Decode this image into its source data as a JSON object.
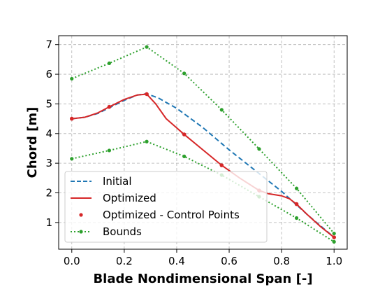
{
  "chart_data": {
    "type": "line",
    "title": "",
    "xlabel": "Blade Nondimensional Span [-]",
    "ylabel": "Chord [m]",
    "xlim": [
      -0.05,
      1.05
    ],
    "ylim": [
      0.1,
      7.3
    ],
    "xticks": [
      0.0,
      0.2,
      0.4,
      0.6,
      0.8,
      1.0
    ],
    "xtick_labels": [
      "0.0",
      "0.2",
      "0.4",
      "0.6",
      "0.8",
      "1.0"
    ],
    "yticks": [
      1,
      2,
      3,
      4,
      5,
      6,
      7
    ],
    "ytick_labels": [
      "1",
      "2",
      "3",
      "4",
      "5",
      "6",
      "7"
    ],
    "grid": true,
    "legend_position": "lower-left",
    "colors": {
      "initial": "#1f77b4",
      "optimized": "#d62728",
      "bounds": "#2ca02c"
    },
    "legend": {
      "initial": "Initial",
      "optimized": "Optimized",
      "control_points": "Optimized - Control Points",
      "bounds": "Bounds"
    },
    "series": {
      "initial": {
        "x": [
          0.0,
          0.05,
          0.1,
          0.15,
          0.2,
          0.25,
          0.2857,
          0.33,
          0.4,
          0.5,
          0.6,
          0.7,
          0.8,
          0.9,
          1.0
        ],
        "y": [
          4.5,
          4.55,
          4.68,
          4.9,
          5.12,
          5.3,
          5.34,
          5.2,
          4.85,
          4.2,
          3.45,
          2.75,
          2.05,
          1.25,
          0.5
        ]
      },
      "optimized": {
        "x": [
          0.0,
          0.05,
          0.1,
          0.143,
          0.2,
          0.25,
          0.2857,
          0.32,
          0.36,
          0.4286,
          0.5,
          0.5714,
          0.64,
          0.7143,
          0.75,
          0.8,
          0.83,
          0.857,
          0.9,
          0.95,
          1.0
        ],
        "y": [
          4.5,
          4.55,
          4.7,
          4.9,
          5.15,
          5.3,
          5.33,
          5.0,
          4.5,
          3.97,
          3.45,
          2.93,
          2.5,
          2.08,
          1.97,
          1.9,
          1.8,
          1.62,
          1.25,
          0.85,
          0.5
        ]
      },
      "control_points": {
        "x": [
          0.0,
          0.1429,
          0.2857,
          0.4286,
          0.5714,
          0.7143,
          0.8571,
          1.0
        ],
        "y": [
          4.5,
          4.9,
          5.33,
          3.97,
          2.93,
          2.08,
          1.62,
          0.5
        ]
      },
      "upper_bound": {
        "x": [
          0.0,
          0.1429,
          0.2857,
          0.4286,
          0.5714,
          0.7143,
          0.8571,
          1.0
        ],
        "y": [
          5.85,
          6.37,
          6.92,
          6.03,
          4.8,
          3.48,
          2.15,
          0.63
        ]
      },
      "lower_bound": {
        "x": [
          0.0,
          0.1429,
          0.2857,
          0.4286,
          0.5714,
          0.7143,
          0.8571,
          1.0
        ],
        "y": [
          3.15,
          3.43,
          3.73,
          3.23,
          2.6,
          1.87,
          1.15,
          0.35
        ]
      }
    }
  }
}
